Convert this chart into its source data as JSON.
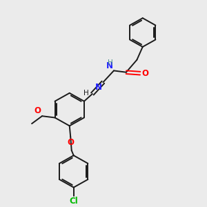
{
  "background_color": "#ebebeb",
  "bond_color": "#1a1a1a",
  "N_color": "#2020ff",
  "O_color": "#ff0000",
  "Cl_color": "#00bb00",
  "H_color": "#4a9090",
  "figsize": [
    3.0,
    3.0
  ],
  "dpi": 100,
  "xlim": [
    0,
    10
  ],
  "ylim": [
    0,
    10
  ]
}
